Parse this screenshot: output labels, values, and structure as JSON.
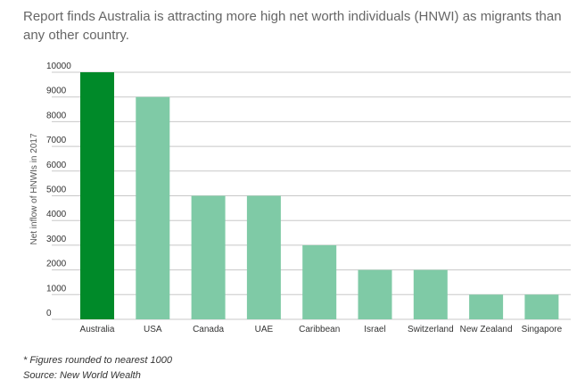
{
  "title": "Report finds Australia is attracting more high net worth individuals (HNWI) as migrants than any other country.",
  "footnote": "* Figures rounded to nearest 1000",
  "source": "Source:  New World Wealth",
  "colors": {
    "highlight": "#008a29",
    "bar": "#7fcaa6",
    "grid": "#c8c8c8"
  },
  "chart_data": {
    "type": "bar",
    "title": "Report finds Australia is attracting more high net worth individuals (HNWI) as migrants than any other country.",
    "xlabel": "",
    "ylabel": "Net inflow of HNWIs in 2017",
    "ylim": [
      0,
      10000
    ],
    "yticks": [
      "0",
      "1000",
      "2000",
      "3000",
      "4000",
      "5000",
      "6000",
      "7000",
      "8000",
      "9000",
      "10000"
    ],
    "grid": true,
    "categories": [
      "Australia",
      "USA",
      "Canada",
      "UAE",
      "Caribbean",
      "Israel",
      "Switzerland",
      "New Zealand",
      "Singapore"
    ],
    "values": [
      10000,
      9000,
      5000,
      5000,
      3000,
      2000,
      2000,
      1000,
      1000
    ],
    "highlight_index": 0
  }
}
